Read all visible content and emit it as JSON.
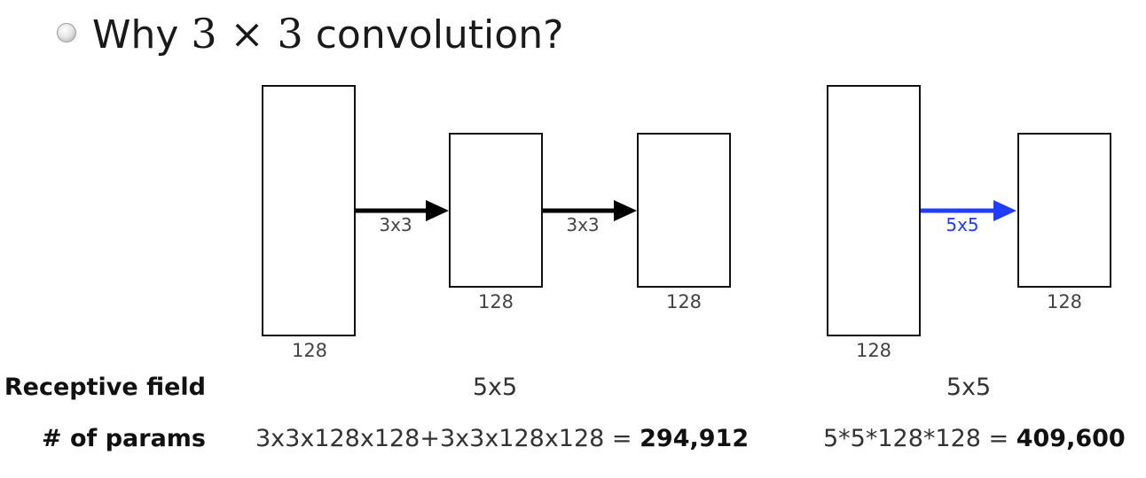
{
  "title": {
    "prefix": "Why ",
    "math": "3 × 3",
    "suffix": " convolution?"
  },
  "left_diagram": {
    "layers": [
      {
        "label": "128"
      },
      {
        "label": "128"
      },
      {
        "label": "128"
      }
    ],
    "convs": [
      {
        "label": "3x3"
      },
      {
        "label": "3x3"
      }
    ]
  },
  "right_diagram": {
    "layers": [
      {
        "label": "128"
      },
      {
        "label": "128"
      }
    ],
    "convs": [
      {
        "label": "5x5"
      }
    ]
  },
  "colors": {
    "arrow_black": "#000000",
    "arrow_blue": "#1f3cff"
  },
  "rows": {
    "receptive_field": {
      "label": "Receptive field",
      "left": "5x5",
      "right": "5x5"
    },
    "params": {
      "label": "# of params",
      "left_expr": "3x3x128x128+3x3x128x128 = ",
      "left_total": "294,912",
      "right_expr": "5*5*128*128 = ",
      "right_total": "409,600"
    }
  }
}
